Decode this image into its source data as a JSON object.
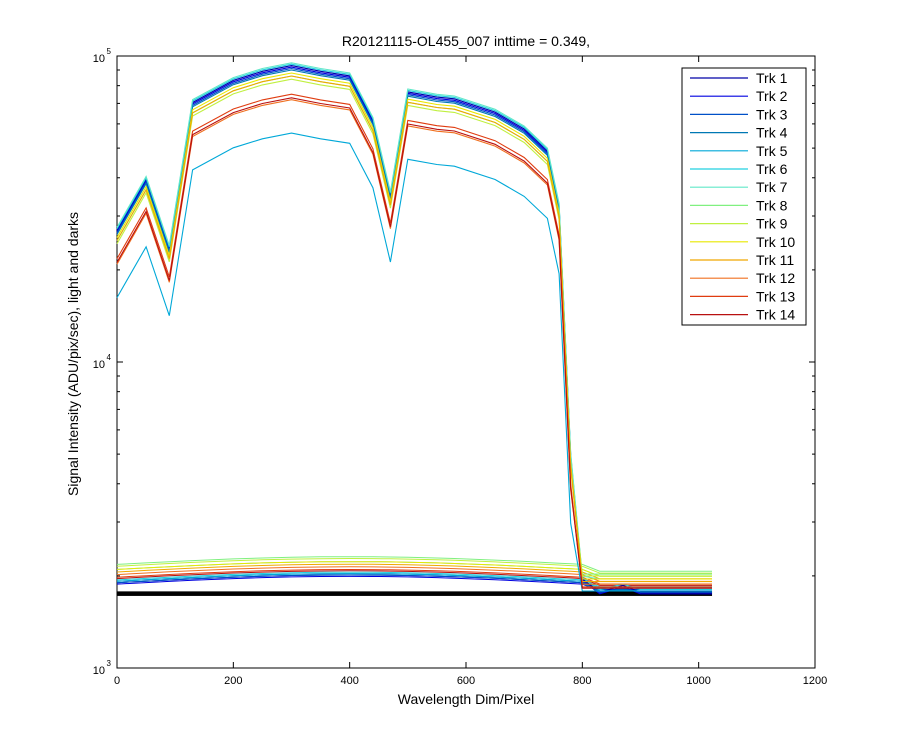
{
  "chart_data": {
    "type": "line",
    "title": "R20121115-OL455_007 inttime = 0.349,",
    "xlabel": "Wavelength Dim/Pixel",
    "ylabel": "Signal Intensity (ADU/pix/sec), light and darks",
    "xlim": [
      0,
      1200
    ],
    "ylim": [
      1000,
      100000
    ],
    "yscale": "log",
    "x_ticks": [
      0,
      200,
      400,
      600,
      800,
      1000,
      1200
    ],
    "y_ticks": [
      {
        "base": "10",
        "exp": "3",
        "value": 1000
      },
      {
        "base": "10",
        "exp": "4",
        "value": 10000
      },
      {
        "base": "10",
        "exp": "5",
        "value": 100000
      }
    ],
    "grid": false,
    "legend_position": "top-right",
    "x": [
      0,
      50,
      90,
      130,
      200,
      250,
      300,
      350,
      400,
      440,
      470,
      500,
      550,
      580,
      650,
      700,
      740,
      760,
      780,
      800,
      830,
      870,
      900,
      950,
      1023
    ],
    "shape_profile": [
      0.29,
      0.425,
      0.253,
      0.758,
      0.895,
      0.958,
      1.0,
      0.958,
      0.926,
      0.663,
      0.379,
      0.821,
      0.789,
      0.779,
      0.705,
      0.621,
      0.526,
      0.347,
      0.053,
      0.021,
      0.019,
      0.02,
      0.019,
      0.019,
      0.019
    ],
    "series": [
      {
        "name": "Trk 1",
        "color": "#0000a6",
        "peak": 93000,
        "dark": 1900
      },
      {
        "name": "Trk 2",
        "color": "#0000e0",
        "peak": 92000,
        "dark": 1880
      },
      {
        "name": "Trk 3",
        "color": "#0050c8",
        "peak": 91000,
        "dark": 1900
      },
      {
        "name": "Trk 4",
        "color": "#0078b4",
        "peak": 90000,
        "dark": 1920
      },
      {
        "name": "Trk 5",
        "color": "#00a8d8",
        "peak": 56000,
        "dark": 1920
      },
      {
        "name": "Trk 6",
        "color": "#20d0e0",
        "peak": 94000,
        "dark": 1940
      },
      {
        "name": "Trk 7",
        "color": "#60e8c8",
        "peak": 95000,
        "dark": 2100
      },
      {
        "name": "Trk 8",
        "color": "#80f080",
        "peak": 86000,
        "dark": 2180
      },
      {
        "name": "Trk 9",
        "color": "#c0f040",
        "peak": 84000,
        "dark": 2150
      },
      {
        "name": "Trk 10",
        "color": "#e8e800",
        "peak": 88000,
        "dark": 2100
      },
      {
        "name": "Trk 11",
        "color": "#f0a800",
        "peak": 86000,
        "dark": 2060
      },
      {
        "name": "Trk 12",
        "color": "#f07020",
        "peak": 72000,
        "dark": 2020
      },
      {
        "name": "Trk 13",
        "color": "#e03c10",
        "peak": 75000,
        "dark": 1980
      },
      {
        "name": "Trk 14",
        "color": "#b81010",
        "peak": 73000,
        "dark": 1960
      }
    ]
  }
}
